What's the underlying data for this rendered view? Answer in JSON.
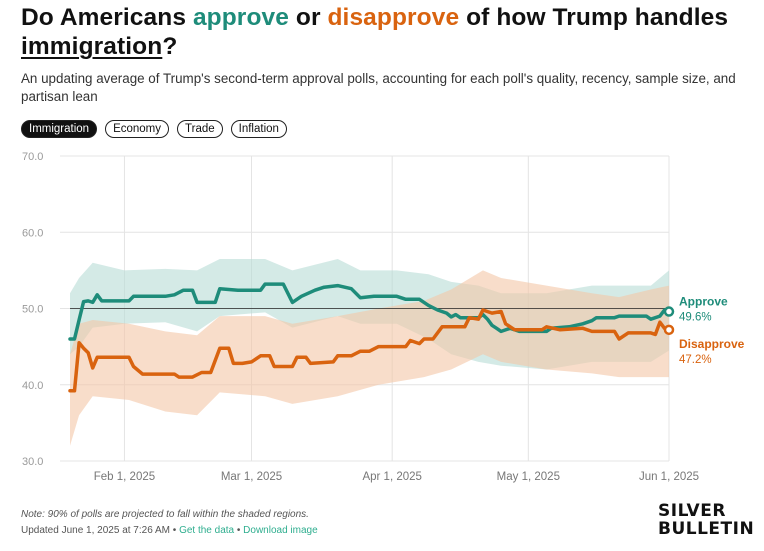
{
  "title": {
    "part1": "Do Americans ",
    "approve": "approve",
    "part2": " or ",
    "disapprove": "disapprove",
    "part3": " of how Trump handles ",
    "topic": "immigration",
    "part4": "?"
  },
  "subtitle": "An updating average of Trump's second-term approval polls, accounting for each poll's quality, recency, sample size, and partisan lean",
  "tabs": [
    {
      "label": "Immigration",
      "active": true
    },
    {
      "label": "Economy",
      "active": false
    },
    {
      "label": "Trade",
      "active": false
    },
    {
      "label": "Inflation",
      "active": false
    }
  ],
  "footer": {
    "note": "Note: 90% of polls are projected to fall within the shaded regions.",
    "updated": "Updated June 1, 2025 at 7:26 AM",
    "sep": " • ",
    "get_data": "Get the data",
    "download": "Download image"
  },
  "logo": {
    "line1": "SILVER",
    "line2": "BULLETIN"
  },
  "colors": {
    "approve": "#1e8c7a",
    "approve_band": "#b8dcd6",
    "disapprove": "#d9630f",
    "disapprove_band": "#f3c6a6",
    "grid": "#e4e4e4",
    "axis_text": "#9a9a9a"
  },
  "chart_data": {
    "type": "line",
    "x_type": "date",
    "xlim": [
      "2025-01-20",
      "2025-06-01"
    ],
    "ylim": [
      30,
      70
    ],
    "y_ticks": [
      30,
      40,
      50,
      60,
      70
    ],
    "y_tick_labels": [
      "30.0",
      "40.0",
      "50.0",
      "60.0",
      "70.0"
    ],
    "x_ticks": [
      "2025-02-01",
      "2025-03-01",
      "2025-04-01",
      "2025-05-01",
      "2025-06-01"
    ],
    "x_tick_labels": [
      "Feb 1, 2025",
      "Mar 1, 2025",
      "Apr 1, 2025",
      "May 1, 2025",
      "Jun 1, 2025"
    ],
    "reference_line": 50,
    "grid": true,
    "series": [
      {
        "name": "Approve",
        "label_value": "49.6%",
        "color": "#1e8c7a",
        "points": [
          [
            "2025-01-20",
            46.0
          ],
          [
            "2025-01-21",
            46.0
          ],
          [
            "2025-01-22",
            48.5
          ],
          [
            "2025-01-23",
            50.9
          ],
          [
            "2025-01-24",
            51.0
          ],
          [
            "2025-01-25",
            50.8
          ],
          [
            "2025-01-26",
            51.8
          ],
          [
            "2025-01-27",
            51.0
          ],
          [
            "2025-02-02",
            51.0
          ],
          [
            "2025-02-03",
            51.6
          ],
          [
            "2025-02-10",
            51.6
          ],
          [
            "2025-02-12",
            51.8
          ],
          [
            "2025-02-14",
            52.4
          ],
          [
            "2025-02-16",
            52.4
          ],
          [
            "2025-02-17",
            50.8
          ],
          [
            "2025-02-21",
            50.8
          ],
          [
            "2025-02-22",
            52.6
          ],
          [
            "2025-02-26",
            52.4
          ],
          [
            "2025-03-03",
            52.4
          ],
          [
            "2025-03-04",
            53.2
          ],
          [
            "2025-03-08",
            53.2
          ],
          [
            "2025-03-10",
            50.8
          ],
          [
            "2025-03-12",
            51.6
          ],
          [
            "2025-03-15",
            52.4
          ],
          [
            "2025-03-17",
            52.8
          ],
          [
            "2025-03-20",
            53.0
          ],
          [
            "2025-03-23",
            52.6
          ],
          [
            "2025-03-25",
            51.4
          ],
          [
            "2025-03-28",
            51.6
          ],
          [
            "2025-04-02",
            51.6
          ],
          [
            "2025-04-04",
            51.2
          ],
          [
            "2025-04-07",
            51.2
          ],
          [
            "2025-04-09",
            50.4
          ],
          [
            "2025-04-11",
            49.8
          ],
          [
            "2025-04-13",
            49.4
          ],
          [
            "2025-04-14",
            48.9
          ],
          [
            "2025-04-15",
            49.2
          ],
          [
            "2025-04-16",
            48.8
          ],
          [
            "2025-04-20",
            48.8
          ],
          [
            "2025-04-21",
            49.2
          ],
          [
            "2025-04-22",
            48.6
          ],
          [
            "2025-04-23",
            47.8
          ],
          [
            "2025-04-24",
            47.4
          ],
          [
            "2025-04-25",
            47.0
          ],
          [
            "2025-04-27",
            47.4
          ],
          [
            "2025-04-29",
            47.0
          ],
          [
            "2025-05-05",
            47.0
          ],
          [
            "2025-05-06",
            47.4
          ],
          [
            "2025-05-10",
            47.6
          ],
          [
            "2025-05-13",
            48.0
          ],
          [
            "2025-05-15",
            48.4
          ],
          [
            "2025-05-16",
            48.8
          ],
          [
            "2025-05-20",
            48.8
          ],
          [
            "2025-05-21",
            49.0
          ],
          [
            "2025-05-27",
            49.0
          ],
          [
            "2025-05-28",
            48.6
          ],
          [
            "2025-05-30",
            49.0
          ],
          [
            "2025-05-31",
            49.8
          ],
          [
            "2025-06-01",
            49.6
          ]
        ],
        "band": [
          [
            "2025-01-20",
            44.0,
            52.0
          ],
          [
            "2025-01-22",
            45.0,
            54.0
          ],
          [
            "2025-01-25",
            47.5,
            56.0
          ],
          [
            "2025-02-01",
            48.0,
            55.0
          ],
          [
            "2025-02-10",
            48.2,
            55.2
          ],
          [
            "2025-02-17",
            47.0,
            55.0
          ],
          [
            "2025-02-22",
            49.0,
            56.5
          ],
          [
            "2025-03-04",
            49.5,
            56.5
          ],
          [
            "2025-03-10",
            47.5,
            55.0
          ],
          [
            "2025-03-20",
            49.0,
            56.5
          ],
          [
            "2025-03-25",
            48.0,
            55.0
          ],
          [
            "2025-04-02",
            48.0,
            55.0
          ],
          [
            "2025-04-09",
            46.0,
            54.5
          ],
          [
            "2025-04-14",
            44.0,
            53.5
          ],
          [
            "2025-04-20",
            43.0,
            53.0
          ],
          [
            "2025-04-25",
            42.5,
            52.0
          ],
          [
            "2025-05-05",
            42.0,
            52.0
          ],
          [
            "2025-05-15",
            43.0,
            53.0
          ],
          [
            "2025-05-21",
            43.0,
            53.0
          ],
          [
            "2025-05-28",
            43.0,
            53.0
          ],
          [
            "2025-06-01",
            44.5,
            55.0
          ]
        ]
      },
      {
        "name": "Disapprove",
        "label_value": "47.2%",
        "color": "#d9630f",
        "points": [
          [
            "2025-01-20",
            39.2
          ],
          [
            "2025-01-21",
            39.2
          ],
          [
            "2025-01-22",
            45.5
          ],
          [
            "2025-01-23",
            44.8
          ],
          [
            "2025-01-24",
            44.2
          ],
          [
            "2025-01-25",
            42.2
          ],
          [
            "2025-01-26",
            43.6
          ],
          [
            "2025-02-02",
            43.6
          ],
          [
            "2025-02-03",
            42.4
          ],
          [
            "2025-02-05",
            41.4
          ],
          [
            "2025-02-12",
            41.4
          ],
          [
            "2025-02-13",
            41.0
          ],
          [
            "2025-02-16",
            41.0
          ],
          [
            "2025-02-18",
            41.6
          ],
          [
            "2025-02-20",
            41.6
          ],
          [
            "2025-02-22",
            44.8
          ],
          [
            "2025-02-24",
            44.8
          ],
          [
            "2025-02-25",
            42.8
          ],
          [
            "2025-02-27",
            42.8
          ],
          [
            "2025-03-01",
            43.0
          ],
          [
            "2025-03-03",
            43.8
          ],
          [
            "2025-03-05",
            43.8
          ],
          [
            "2025-03-06",
            42.4
          ],
          [
            "2025-03-10",
            42.4
          ],
          [
            "2025-03-11",
            43.6
          ],
          [
            "2025-03-13",
            43.6
          ],
          [
            "2025-03-14",
            42.8
          ],
          [
            "2025-03-19",
            43.0
          ],
          [
            "2025-03-20",
            43.8
          ],
          [
            "2025-03-23",
            43.8
          ],
          [
            "2025-03-25",
            44.4
          ],
          [
            "2025-03-27",
            44.4
          ],
          [
            "2025-03-29",
            45.0
          ],
          [
            "2025-04-04",
            45.0
          ],
          [
            "2025-04-05",
            45.8
          ],
          [
            "2025-04-07",
            45.4
          ],
          [
            "2025-04-08",
            46.0
          ],
          [
            "2025-04-10",
            46.0
          ],
          [
            "2025-04-12",
            47.6
          ],
          [
            "2025-04-17",
            47.6
          ],
          [
            "2025-04-18",
            48.8
          ],
          [
            "2025-04-20",
            48.6
          ],
          [
            "2025-04-21",
            49.8
          ],
          [
            "2025-04-23",
            49.4
          ],
          [
            "2025-04-25",
            49.6
          ],
          [
            "2025-04-26",
            48.0
          ],
          [
            "2025-04-28",
            47.2
          ],
          [
            "2025-05-04",
            47.2
          ],
          [
            "2025-05-05",
            47.6
          ],
          [
            "2025-05-08",
            47.2
          ],
          [
            "2025-05-13",
            47.4
          ],
          [
            "2025-05-15",
            47.0
          ],
          [
            "2025-05-20",
            47.0
          ],
          [
            "2025-05-21",
            46.0
          ],
          [
            "2025-05-23",
            46.8
          ],
          [
            "2025-05-28",
            46.8
          ],
          [
            "2025-05-29",
            46.6
          ],
          [
            "2025-05-30",
            48.2
          ],
          [
            "2025-05-31",
            47.4
          ],
          [
            "2025-06-01",
            47.2
          ]
        ],
        "band": [
          [
            "2025-01-20",
            32.0,
            44.0
          ],
          [
            "2025-01-22",
            36.0,
            48.0
          ],
          [
            "2025-01-25",
            38.5,
            48.5
          ],
          [
            "2025-02-02",
            38.0,
            48.0
          ],
          [
            "2025-02-10",
            36.5,
            47.0
          ],
          [
            "2025-02-17",
            36.0,
            46.5
          ],
          [
            "2025-02-22",
            39.0,
            49.0
          ],
          [
            "2025-03-04",
            38.5,
            49.0
          ],
          [
            "2025-03-10",
            37.5,
            48.0
          ],
          [
            "2025-03-20",
            38.5,
            49.0
          ],
          [
            "2025-03-29",
            40.0,
            50.0
          ],
          [
            "2025-04-08",
            41.0,
            51.0
          ],
          [
            "2025-04-14",
            42.0,
            52.5
          ],
          [
            "2025-04-21",
            44.0,
            55.0
          ],
          [
            "2025-04-25",
            43.0,
            54.0
          ],
          [
            "2025-05-05",
            42.0,
            53.0
          ],
          [
            "2025-05-15",
            41.5,
            52.0
          ],
          [
            "2025-05-21",
            41.0,
            51.5
          ],
          [
            "2025-05-28",
            41.0,
            52.5
          ],
          [
            "2025-06-01",
            41.0,
            53.0
          ]
        ]
      }
    ]
  }
}
